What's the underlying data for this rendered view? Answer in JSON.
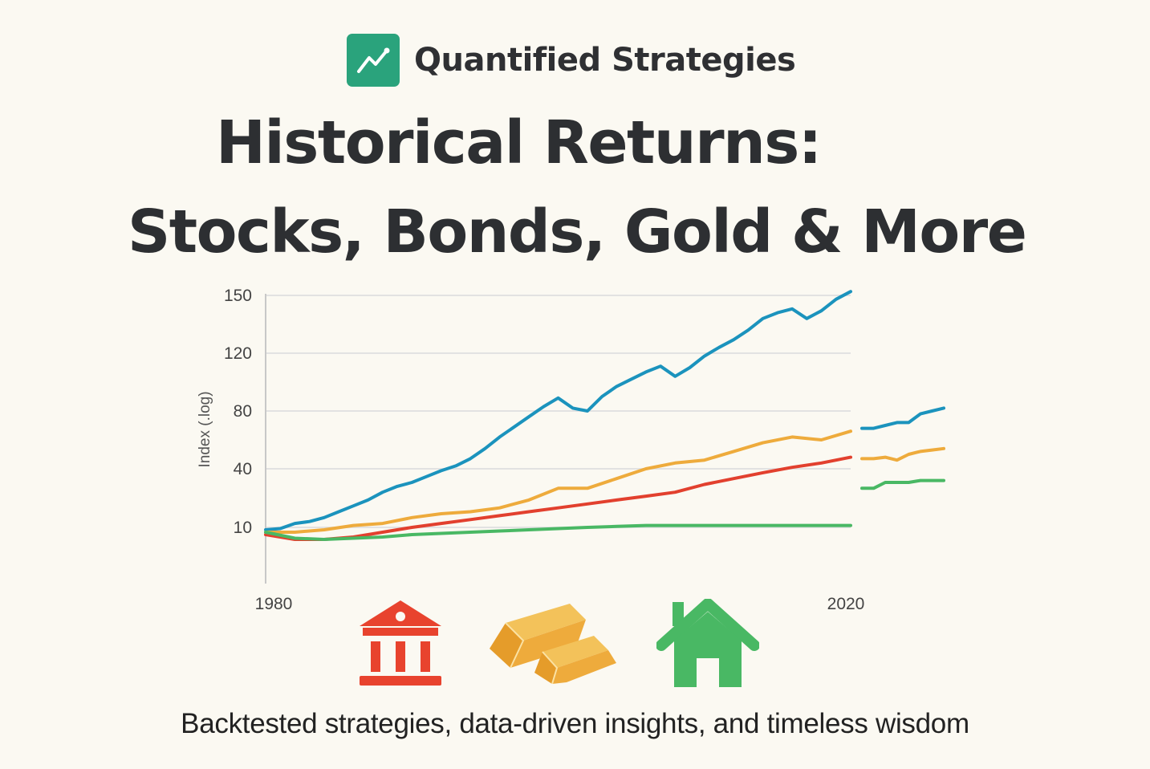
{
  "brand": {
    "name": "Quantified Strategies",
    "logo_icon": "trend-up-icon",
    "logo_color": "#2aa37c"
  },
  "headline": {
    "line1": "Historical Returns:",
    "line2": "Stocks, Bonds, Gold & More"
  },
  "tagline": "Backtested strategies, data-driven insights, and timeless wisdom",
  "icons": [
    {
      "name": "bank-icon",
      "color": "#e8432e"
    },
    {
      "name": "gold-bars-icon",
      "color": "#eeab3c"
    },
    {
      "name": "house-icon",
      "color": "#49b864"
    }
  ],
  "chart_data": {
    "type": "line",
    "ylabel": "Index (.log)",
    "xlabel": "",
    "x_tick_labels": [
      "1980",
      "2020"
    ],
    "y_tick_labels": [
      "150",
      "120",
      "80",
      "40",
      "10"
    ],
    "x_range": [
      1980,
      2020
    ],
    "grid": true,
    "legend": "none",
    "series": [
      {
        "color": "#1b93bd",
        "x": [
          1980,
          1981,
          1982,
          1983,
          1984,
          1985,
          1986,
          1987,
          1988,
          1989,
          1990,
          1991,
          1992,
          1993,
          1994,
          1995,
          1996,
          1997,
          1998,
          1999,
          2000,
          2001,
          2002,
          2003,
          2004,
          2005,
          2006,
          2007,
          2008,
          2009,
          2010,
          2011,
          2012,
          2013,
          2014,
          2015,
          2016,
          2017,
          2018,
          2019,
          2020
        ],
        "y": [
          9,
          9.5,
          12,
          13,
          15,
          18,
          21,
          24,
          28,
          31,
          33,
          36,
          39,
          42,
          47,
          54,
          62,
          69,
          76,
          83,
          89,
          82,
          80,
          90,
          97,
          102,
          107,
          111,
          104,
          110,
          118,
          123,
          127,
          132,
          138,
          141,
          143,
          138,
          142,
          148,
          152
        ]
      },
      {
        "color": "#eeab3c",
        "x": [
          1980,
          1982,
          1984,
          1986,
          1988,
          1990,
          1992,
          1994,
          1996,
          1998,
          2000,
          2002,
          2004,
          2006,
          2008,
          2010,
          2012,
          2014,
          2016,
          2018,
          2020
        ],
        "y": [
          8,
          8,
          9,
          11,
          12,
          15,
          17,
          18,
          20,
          24,
          30,
          30,
          35,
          40,
          44,
          46,
          52,
          58,
          62,
          60,
          66
        ]
      },
      {
        "color": "#e2402e",
        "x": [
          1980,
          1982,
          1984,
          1986,
          1988,
          1990,
          1992,
          1994,
          1996,
          1998,
          2000,
          2002,
          2004,
          2006,
          2008,
          2010,
          2012,
          2014,
          2016,
          2018,
          2020
        ],
        "y": [
          7,
          5,
          5,
          6,
          8,
          10,
          12,
          14,
          16,
          18,
          20,
          22,
          24,
          26,
          28,
          32,
          35,
          38,
          41,
          44,
          48
        ]
      },
      {
        "color": "#49b864",
        "x": [
          1980,
          1982,
          1984,
          1986,
          1988,
          1990,
          1992,
          1994,
          1996,
          1998,
          2000,
          2002,
          2004,
          2006,
          2008,
          2010,
          2012,
          2014,
          2016,
          2018,
          2020
        ],
        "y": [
          8,
          5.5,
          5,
          5.5,
          6,
          7,
          7.5,
          8,
          8.5,
          9,
          9.5,
          10,
          10.5,
          11,
          11,
          11,
          11,
          11,
          11,
          11,
          11
        ]
      }
    ],
    "extension_series": [
      {
        "color": "#1b93bd",
        "y": [
          68,
          68,
          70,
          72,
          72,
          78,
          80,
          82
        ]
      },
      {
        "color": "#eeab3c",
        "y": [
          47,
          47,
          48,
          46,
          50,
          52,
          53,
          54
        ]
      },
      {
        "color": "#49b864",
        "y": [
          30,
          30,
          33,
          33,
          33,
          34,
          34,
          34
        ]
      }
    ]
  }
}
